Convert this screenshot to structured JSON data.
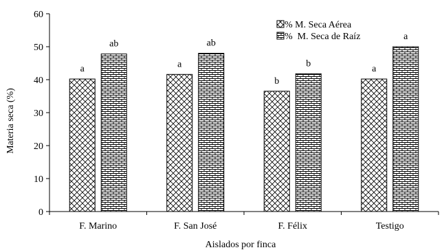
{
  "chart_data": {
    "type": "bar",
    "categories": [
      "F. Marino",
      "F. San José",
      "F. Félix",
      "Testigo"
    ],
    "series": [
      {
        "name": "% M. Seca Aérea",
        "pattern": "diagonal-crosshatch",
        "values": [
          40.2,
          41.6,
          36.5,
          40.2
        ],
        "labels": [
          "a",
          "a",
          "b",
          "a"
        ]
      },
      {
        "name": "%  M. Seca de Raíz",
        "pattern": "brick",
        "values": [
          47.8,
          48.0,
          41.8,
          50.0
        ],
        "labels": [
          "ab",
          "ab",
          "b",
          "a"
        ]
      }
    ],
    "xlabel": "Aislados por finca",
    "ylabel": "Materia seca (%)",
    "ylim": [
      0,
      60
    ],
    "yticks": [
      0,
      10,
      20,
      30,
      40,
      50,
      60
    ],
    "grid": false,
    "legend_position": "top-right",
    "bar_color": "#000000",
    "background": "#ffffff"
  }
}
